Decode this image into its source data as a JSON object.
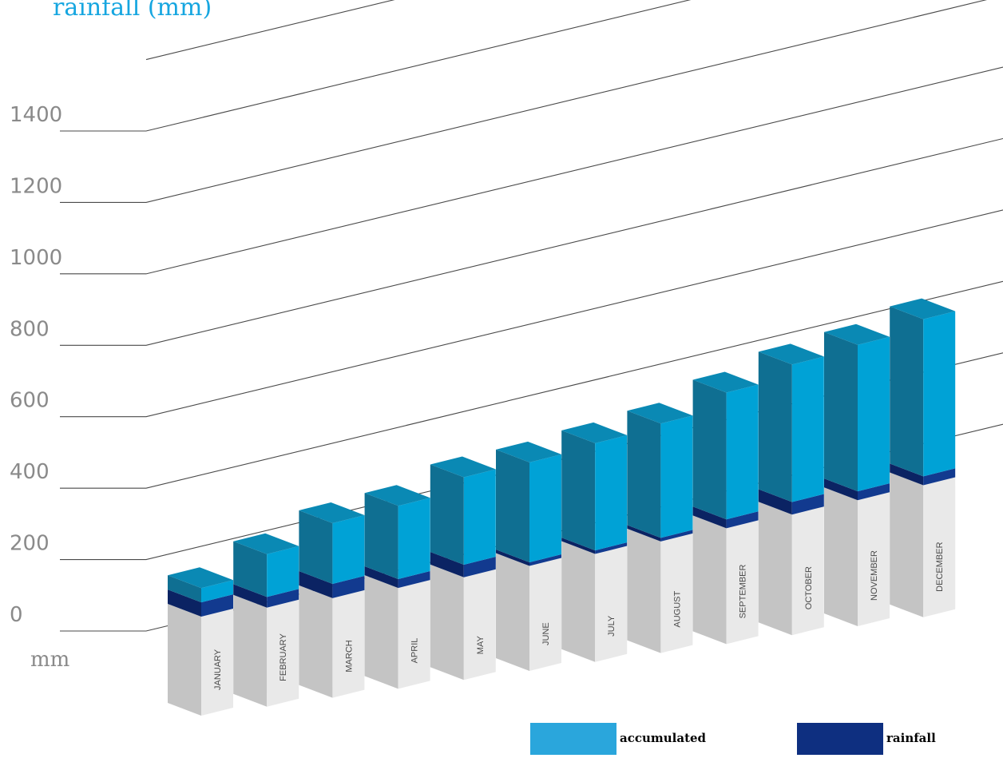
{
  "chart_data": {
    "type": "bar",
    "title": "rainfall (mm)",
    "ylabel": "mm",
    "ylim": [
      0,
      1400
    ],
    "yticks": [
      "0",
      "200",
      "400",
      "600",
      "800",
      "1000",
      "1200",
      "1400"
    ],
    "categories": [
      "JANUARY",
      "FEBRUARY",
      "MARCH",
      "APRIL",
      "MAY",
      "JUNE",
      "JULY",
      "AUGUST",
      "SEPTEMBER",
      "OCTOBER",
      "NOVEMBER",
      "DECEMBER"
    ],
    "series": [
      {
        "name": "accumulated",
        "color": "#2aa6dc",
        "values": [
          40,
          120,
          170,
          205,
          245,
          280,
          300,
          320,
          355,
          385,
          410,
          440
        ]
      },
      {
        "name": "rainfall",
        "color": "#0e2f80",
        "values": [
          40,
          30,
          40,
          25,
          35,
          10,
          10,
          10,
          25,
          35,
          25,
          25
        ]
      }
    ],
    "legend": "bottom-right",
    "grid": true
  }
}
